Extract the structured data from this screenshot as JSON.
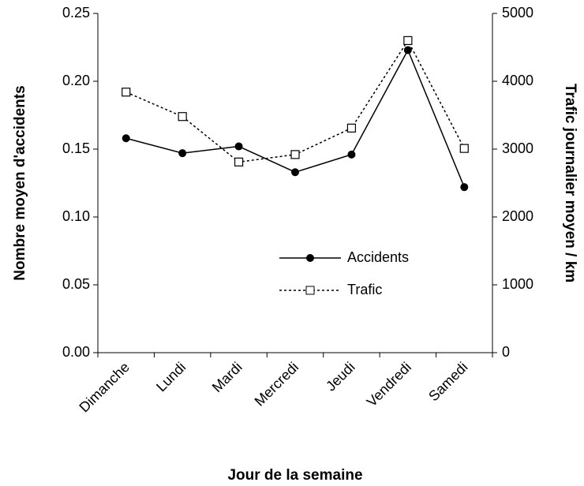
{
  "chart_data": {
    "type": "line",
    "categories": [
      "Dimanche",
      "Lundi",
      "Mardi",
      "Mercredi",
      "Jeudi",
      "Vendredi",
      "Samedi"
    ],
    "series": [
      {
        "name": "Accidents",
        "color": "#000000",
        "values": [
          0.158,
          0.147,
          0.152,
          0.133,
          0.146,
          0.223,
          0.122
        ]
      },
      {
        "name": "Trafic",
        "color": "#000000",
        "axis": "y2",
        "values": [
          3840,
          3480,
          2810,
          2920,
          3310,
          4600,
          3010
        ]
      }
    ],
    "ylabel": "Nombre moyen d'accidents",
    "y2label": "Trafic journalier moyen / km",
    "xlabel": "Jour de la semaine",
    "ylim": [
      0,
      0.25
    ],
    "yticks": [
      {
        "value": 0,
        "label": "0.00"
      },
      {
        "value": 0.05,
        "label": "0.05"
      },
      {
        "value": 0.1,
        "label": "0.10"
      },
      {
        "value": 0.15,
        "label": "0.15"
      },
      {
        "value": 0.2,
        "label": "0.20"
      },
      {
        "value": 0.25,
        "label": "0.25"
      }
    ],
    "y2lim": [
      0,
      5000
    ],
    "y2ticks": [
      0,
      1000,
      2000,
      3000,
      4000,
      5000
    ]
  }
}
